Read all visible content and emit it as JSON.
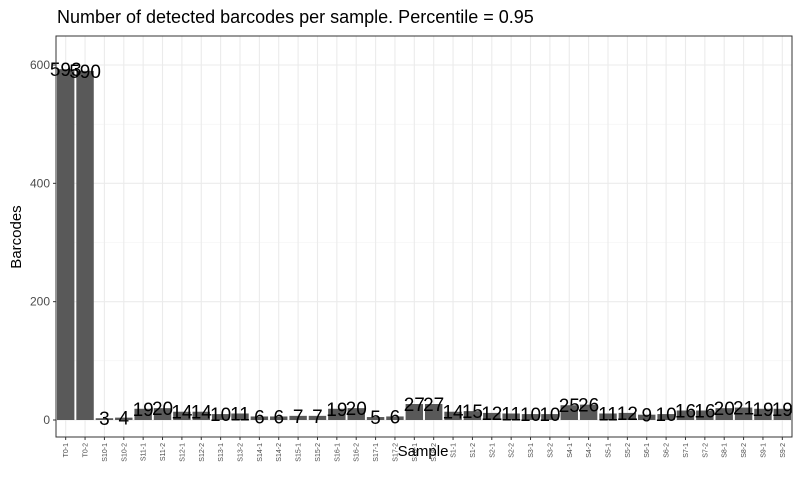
{
  "chart_data": {
    "type": "bar",
    "title": "Number of detected barcodes per sample. Percentile = 0.95",
    "xlabel": "Sample",
    "ylabel": "Barcodes",
    "ylim": [
      0,
      645
    ],
    "yticks": [
      0,
      200,
      400,
      600
    ],
    "grid": true,
    "bar_color": "#595959",
    "categories": [
      "T0-1",
      "T0-2",
      "S10-1",
      "S10-2",
      "S11-1",
      "S11-2",
      "S12-1",
      "S12-2",
      "S13-1",
      "S13-2",
      "S14-1",
      "S14-2",
      "S15-1",
      "S15-2",
      "S16-1",
      "S16-2",
      "S17-1",
      "S17-2",
      "S18-1",
      "S18-2",
      "S1-1",
      "S1-2",
      "S2-1",
      "S2-2",
      "S3-1",
      "S3-2",
      "S4-1",
      "S4-2",
      "S5-1",
      "S5-2",
      "S6-1",
      "S6-2",
      "S7-1",
      "S7-2",
      "S8-1",
      "S8-2",
      "S9-1",
      "S9-2"
    ],
    "values": [
      593,
      590,
      3,
      4,
      19,
      20,
      14,
      14,
      10,
      11,
      6,
      6,
      7,
      7,
      19,
      20,
      5,
      6,
      27,
      27,
      14,
      15,
      12,
      11,
      10,
      10,
      25,
      26,
      11,
      12,
      9,
      10,
      16,
      16,
      20,
      21,
      19,
      19
    ],
    "labels": [
      "593",
      "590",
      "3",
      "4",
      "19",
      "20",
      "14",
      "14",
      "10",
      "11",
      "6",
      "6",
      "7",
      "7",
      "19",
      "20",
      "5",
      "6",
      "27",
      "27",
      "14",
      "15",
      "12",
      "11",
      "10",
      "10",
      "25",
      "26",
      "11",
      "12",
      "9",
      "10",
      "16",
      "16",
      "20",
      "21",
      "19",
      "19"
    ]
  }
}
